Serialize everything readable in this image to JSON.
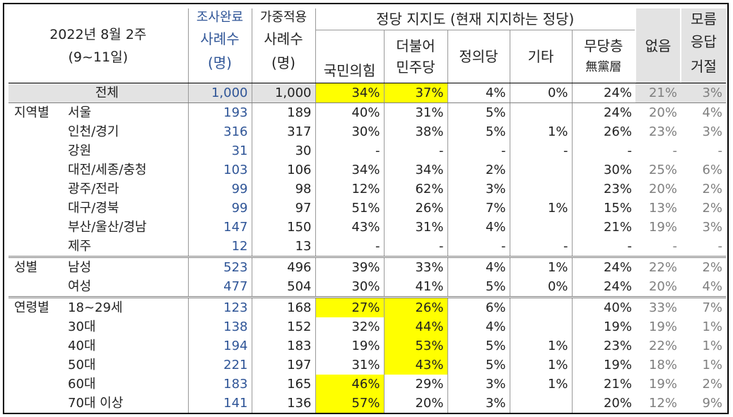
{
  "header": {
    "period_line1": "2022년 8월 2주",
    "period_line2": "(9~11일)",
    "completed_cases": [
      "조사완료",
      "사례수",
      "(명)"
    ],
    "weighted_cases": [
      "가중적용",
      "사례수",
      "(명)"
    ],
    "party_support_title": "정당 지지도 (현재 지지하는 정당)",
    "parties": [
      [
        "국민의힘"
      ],
      [
        "더불어",
        "민주당"
      ],
      [
        "정의당"
      ],
      [
        "기타"
      ],
      [
        "무당층",
        "無黨層"
      ]
    ],
    "none": "없음",
    "dont_know": [
      "모름",
      "응답",
      "거절"
    ]
  },
  "total": {
    "label": "전체",
    "values": [
      "1,000",
      "1,000",
      "34%",
      "37%",
      "4%",
      "0%",
      "24%",
      "21%",
      "3%"
    ]
  },
  "groups": [
    {
      "name": "지역별",
      "rows": [
        {
          "label": "서울",
          "values": [
            "193",
            "189",
            "40%",
            "31%",
            "5%",
            "",
            "24%",
            "20%",
            "4%"
          ]
        },
        {
          "label": "인천/경기",
          "values": [
            "316",
            "317",
            "30%",
            "38%",
            "5%",
            "1%",
            "26%",
            "23%",
            "3%"
          ]
        },
        {
          "label": "강원",
          "values": [
            "31",
            "30",
            "-",
            "-",
            "-",
            "-",
            "-",
            "-",
            "-"
          ]
        },
        {
          "label": "대전/세종/충청",
          "values": [
            "103",
            "106",
            "34%",
            "34%",
            "2%",
            "",
            "30%",
            "25%",
            "6%"
          ]
        },
        {
          "label": "광주/전라",
          "values": [
            "99",
            "98",
            "12%",
            "62%",
            "3%",
            "",
            "23%",
            "20%",
            "2%"
          ]
        },
        {
          "label": "대구/경북",
          "values": [
            "99",
            "97",
            "51%",
            "26%",
            "7%",
            "1%",
            "15%",
            "13%",
            "2%"
          ]
        },
        {
          "label": "부산/울산/경남",
          "values": [
            "147",
            "150",
            "43%",
            "31%",
            "4%",
            "",
            "21%",
            "19%",
            "3%"
          ]
        },
        {
          "label": "제주",
          "values": [
            "12",
            "13",
            "-",
            "-",
            "-",
            "-",
            "-",
            "-",
            "-"
          ]
        }
      ]
    },
    {
      "name": "성별",
      "rows": [
        {
          "label": "남성",
          "values": [
            "523",
            "496",
            "39%",
            "33%",
            "4%",
            "1%",
            "24%",
            "22%",
            "2%"
          ]
        },
        {
          "label": "여성",
          "values": [
            "477",
            "504",
            "30%",
            "41%",
            "5%",
            "0%",
            "24%",
            "20%",
            "4%"
          ]
        }
      ]
    },
    {
      "name": "연령별",
      "rows": [
        {
          "label": "18~29세",
          "values": [
            "123",
            "168",
            "27%",
            "26%",
            "6%",
            "",
            "40%",
            "33%",
            "7%"
          ]
        },
        {
          "label": "30대",
          "values": [
            "138",
            "152",
            "32%",
            "44%",
            "4%",
            "",
            "19%",
            "19%",
            "1%"
          ]
        },
        {
          "label": "40대",
          "values": [
            "194",
            "183",
            "19%",
            "53%",
            "5%",
            "1%",
            "23%",
            "22%",
            "1%"
          ]
        },
        {
          "label": "50대",
          "values": [
            "221",
            "197",
            "31%",
            "43%",
            "5%",
            "1%",
            "19%",
            "18%",
            "1%"
          ]
        },
        {
          "label": "60대",
          "values": [
            "183",
            "165",
            "46%",
            "29%",
            "3%",
            "1%",
            "21%",
            "19%",
            "2%"
          ]
        },
        {
          "label": "70대 이상",
          "values": [
            "141",
            "136",
            "57%",
            "20%",
            "3%",
            "",
            "20%",
            "12%",
            "9%"
          ]
        }
      ]
    }
  ],
  "colors": {
    "highlight": "#ffff00",
    "header_blue": "#2f5597",
    "gray_text": "#7f7f7f",
    "gray_bg": "#e3e3e3"
  }
}
